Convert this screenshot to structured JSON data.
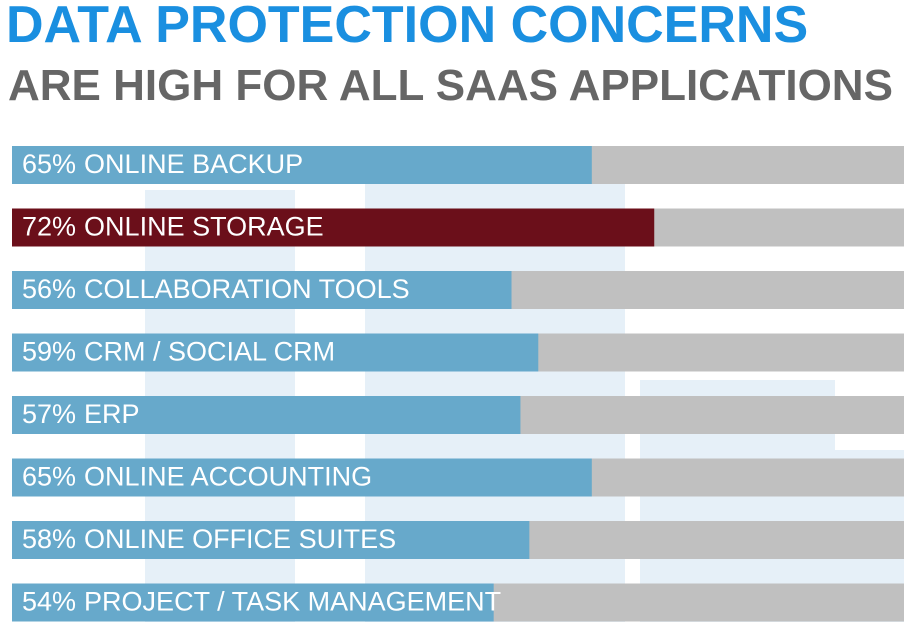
{
  "chart_data": {
    "type": "bar",
    "orientation": "horizontal",
    "title": "DATA PROTECTION CONCERNS",
    "subtitle": "ARE HIGH FOR ALL SAAS APPLICATIONS",
    "categories": [
      "ONLINE BACKUP",
      "ONLINE STORAGE",
      "COLLABORATION TOOLS",
      "CRM / SOCIAL CRM",
      "ERP",
      "ONLINE ACCOUNTING",
      "ONLINE OFFICE SUITES",
      "PROJECT / TASK MANAGEMENT"
    ],
    "values": [
      65,
      72,
      56,
      59,
      57,
      65,
      58,
      54
    ],
    "value_labels": [
      "65%",
      "72%",
      "56%",
      "59%",
      "57%",
      "65%",
      "58%",
      "54%"
    ],
    "colors": [
      "#67a9cb",
      "#6b0f1a",
      "#67a9cb",
      "#67a9cb",
      "#67a9cb",
      "#67a9cb",
      "#67a9cb",
      "#67a9cb"
    ],
    "track_color": "#c0c0c0",
    "xlim": [
      0,
      100
    ]
  }
}
